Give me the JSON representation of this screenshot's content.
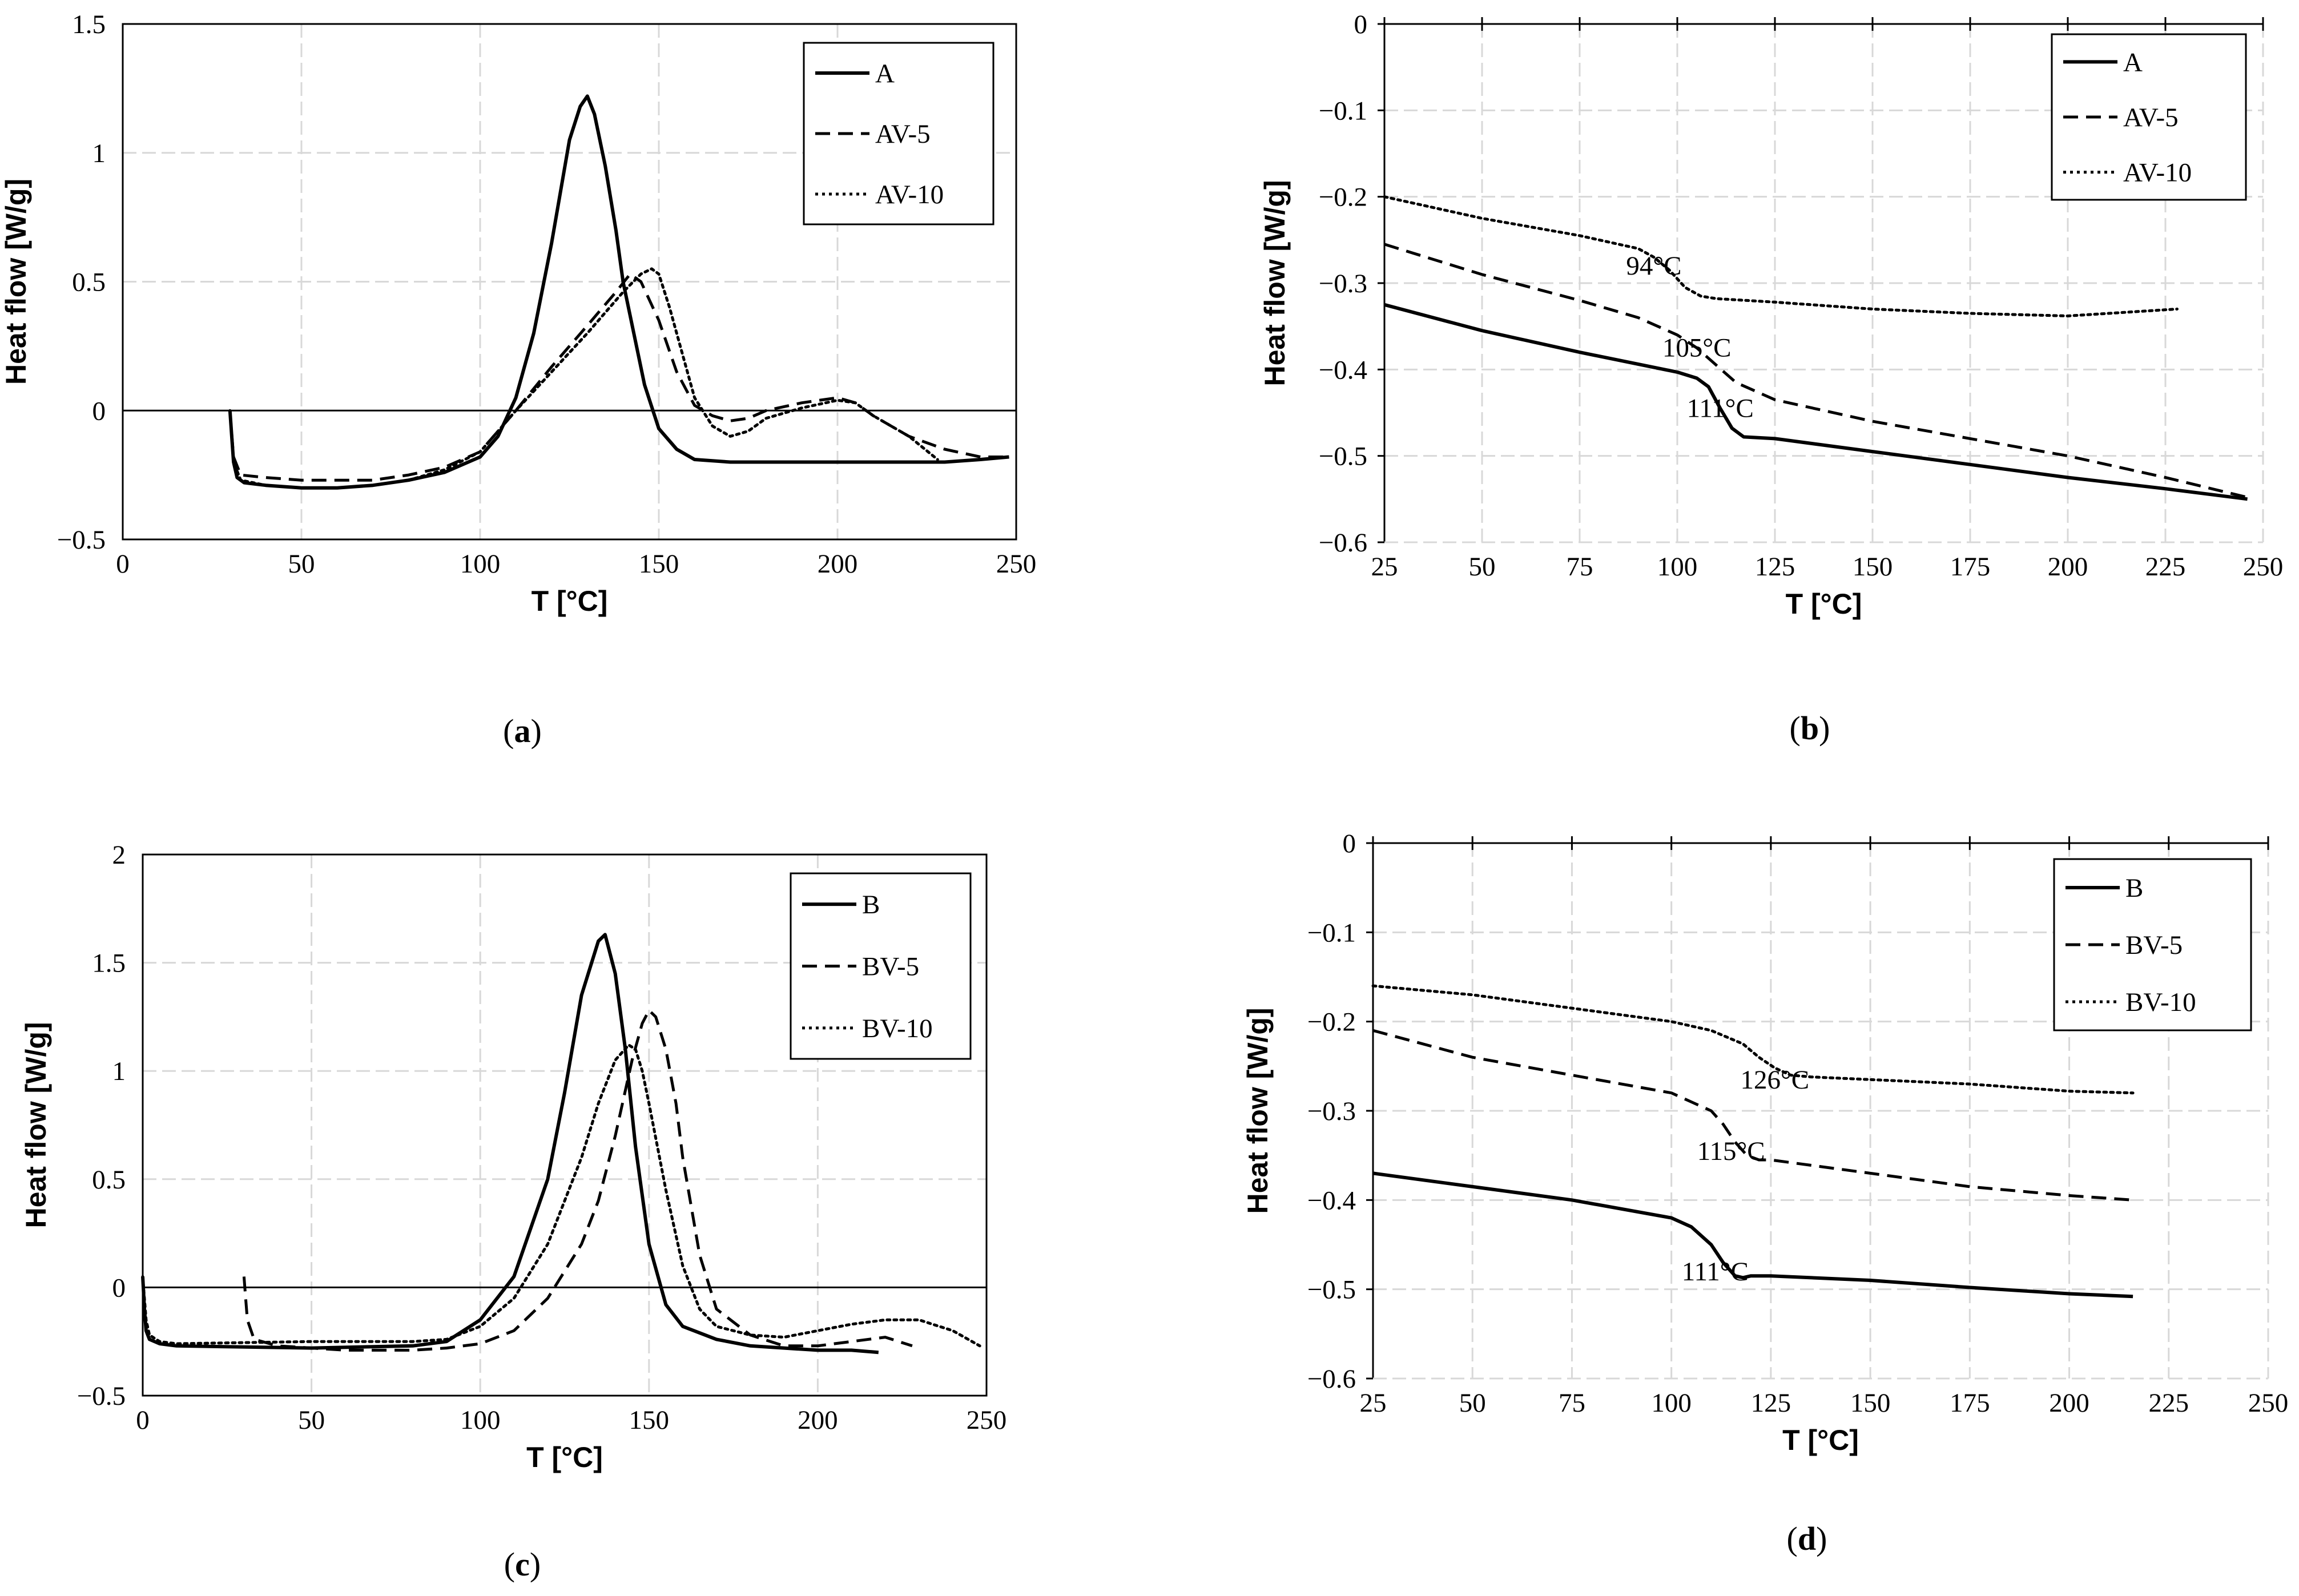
{
  "chart_data": [
    {
      "id": "a",
      "type": "line",
      "caption": "a",
      "xlabel": "T [°C]",
      "ylabel": "Heat flow [W/g]",
      "xlim": [
        0,
        250
      ],
      "ylim": [
        -0.5,
        1.5
      ],
      "xticks": [
        0,
        50,
        100,
        150,
        200,
        250
      ],
      "xtick_labels": [
        "0",
        "50",
        "100",
        "150",
        "200",
        "250"
      ],
      "yticks": [
        -0.5,
        0,
        0.5,
        1,
        1.5
      ],
      "ytick_labels": [
        "−0.5",
        "0",
        "0.5",
        "1",
        "1.5"
      ],
      "zero_line": true,
      "legend_position": "top-right",
      "series": [
        {
          "name": "A",
          "style": "solid",
          "x": [
            30,
            30.5,
            31,
            32,
            34,
            40,
            50,
            60,
            70,
            80,
            90,
            100,
            105,
            110,
            115,
            120,
            125,
            128,
            130,
            132,
            135,
            138,
            140,
            143,
            146,
            150,
            155,
            160,
            170,
            180,
            190,
            200,
            210,
            220,
            230,
            240,
            248
          ],
          "y": [
            0,
            -0.1,
            -0.2,
            -0.26,
            -0.28,
            -0.29,
            -0.3,
            -0.3,
            -0.29,
            -0.27,
            -0.24,
            -0.18,
            -0.1,
            0.05,
            0.3,
            0.65,
            1.05,
            1.18,
            1.22,
            1.15,
            0.95,
            0.7,
            0.5,
            0.3,
            0.1,
            -0.07,
            -0.15,
            -0.19,
            -0.2,
            -0.2,
            -0.2,
            -0.2,
            -0.2,
            -0.2,
            -0.2,
            -0.19,
            -0.18
          ]
        },
        {
          "name": "AV-5",
          "style": "dashed",
          "x": [
            30,
            31,
            33,
            40,
            50,
            60,
            70,
            80,
            90,
            100,
            110,
            120,
            130,
            138,
            142,
            145,
            150,
            155,
            160,
            165,
            170,
            175,
            180,
            190,
            200,
            205,
            210,
            220,
            230,
            240,
            248
          ],
          "y": [
            0,
            -0.18,
            -0.25,
            -0.26,
            -0.27,
            -0.27,
            -0.27,
            -0.25,
            -0.22,
            -0.16,
            0,
            0.17,
            0.33,
            0.46,
            0.53,
            0.5,
            0.35,
            0.15,
            0.02,
            -0.02,
            -0.04,
            -0.03,
            0,
            0.03,
            0.05,
            0.03,
            -0.02,
            -0.1,
            -0.15,
            -0.18,
            -0.18
          ]
        },
        {
          "name": "AV-10",
          "style": "dotted",
          "x": [
            30,
            31,
            33,
            40,
            50,
            60,
            70,
            80,
            90,
            100,
            110,
            120,
            130,
            140,
            145,
            148,
            150,
            153,
            157,
            160,
            165,
            170,
            175,
            180,
            190,
            200,
            205,
            210,
            220,
            228
          ],
          "y": [
            0,
            -0.2,
            -0.27,
            -0.29,
            -0.3,
            -0.3,
            -0.29,
            -0.27,
            -0.23,
            -0.16,
            0,
            0.15,
            0.3,
            0.46,
            0.53,
            0.55,
            0.53,
            0.4,
            0.2,
            0.05,
            -0.06,
            -0.1,
            -0.08,
            -0.03,
            0.01,
            0.04,
            0.03,
            -0.02,
            -0.1,
            -0.19
          ]
        }
      ]
    },
    {
      "id": "b",
      "type": "line",
      "caption": "b",
      "xlabel": "T [°C]",
      "ylabel": "Heat flow [W/g]",
      "xlim": [
        25,
        250
      ],
      "ylim": [
        -0.6,
        0
      ],
      "xticks": [
        25,
        50,
        75,
        100,
        125,
        150,
        175,
        200,
        225,
        250
      ],
      "xtick_labels": [
        "25",
        "50",
        "75",
        "100",
        "125",
        "150",
        "175",
        "200",
        "225",
        "250"
      ],
      "yticks": [
        -0.6,
        -0.5,
        -0.4,
        -0.3,
        -0.2,
        -0.1,
        0
      ],
      "ytick_labels": [
        "−0.6",
        "−0.5",
        "−0.4",
        "−0.3",
        "−0.2",
        "−0.1",
        "0"
      ],
      "zero_line": false,
      "top_axis": true,
      "legend_position": "top-right",
      "series": [
        {
          "name": "A",
          "style": "solid",
          "x": [
            25,
            50,
            75,
            100,
            105,
            108,
            111,
            114,
            117,
            125,
            150,
            175,
            200,
            225,
            246
          ],
          "y": [
            -0.325,
            -0.355,
            -0.38,
            -0.403,
            -0.41,
            -0.42,
            -0.445,
            -0.468,
            -0.478,
            -0.48,
            -0.495,
            -0.51,
            -0.525,
            -0.538,
            -0.55
          ]
        },
        {
          "name": "AV-5",
          "style": "dashed",
          "x": [
            25,
            50,
            75,
            90,
            100,
            105,
            110,
            115,
            120,
            125,
            150,
            175,
            200,
            225,
            246
          ],
          "y": [
            -0.255,
            -0.29,
            -0.32,
            -0.34,
            -0.36,
            -0.375,
            -0.395,
            -0.415,
            -0.425,
            -0.435,
            -0.46,
            -0.48,
            -0.5,
            -0.525,
            -0.548
          ]
        },
        {
          "name": "AV-10",
          "style": "dotted",
          "x": [
            25,
            50,
            75,
            90,
            94,
            98,
            102,
            106,
            110,
            125,
            150,
            175,
            200,
            228
          ],
          "y": [
            -0.2,
            -0.225,
            -0.245,
            -0.26,
            -0.27,
            -0.285,
            -0.305,
            -0.315,
            -0.318,
            -0.322,
            -0.33,
            -0.335,
            -0.338,
            -0.33
          ]
        }
      ],
      "annotations": [
        {
          "text": "94°C",
          "x": 94,
          "y": -0.29
        },
        {
          "text": "105°C",
          "x": 105,
          "y": -0.385
        },
        {
          "text": "111°C",
          "x": 111,
          "y": -0.455
        }
      ]
    },
    {
      "id": "c",
      "type": "line",
      "caption": "c",
      "xlabel": "T [°C]",
      "ylabel": "Heat flow [W/g]",
      "xlim": [
        0,
        250
      ],
      "ylim": [
        -0.5,
        2
      ],
      "xticks": [
        0,
        50,
        100,
        150,
        200,
        250
      ],
      "xtick_labels": [
        "0",
        "50",
        "100",
        "150",
        "200",
        "250"
      ],
      "yticks": [
        -0.5,
        0,
        0.5,
        1,
        1.5,
        2
      ],
      "ytick_labels": [
        "−0.5",
        "0",
        "0.5",
        "1",
        "1.5",
        "2"
      ],
      "zero_line": true,
      "legend_position": "top-right",
      "series": [
        {
          "name": "B",
          "style": "solid",
          "x": [
            0,
            0.5,
            1,
            2,
            5,
            10,
            50,
            80,
            90,
            100,
            110,
            120,
            125,
            130,
            135,
            137,
            140,
            143,
            146,
            150,
            155,
            160,
            170,
            180,
            190,
            200,
            210,
            218
          ],
          "y": [
            0.05,
            -0.1,
            -0.2,
            -0.24,
            -0.26,
            -0.27,
            -0.28,
            -0.27,
            -0.25,
            -0.15,
            0.05,
            0.5,
            0.9,
            1.35,
            1.6,
            1.63,
            1.45,
            1.1,
            0.65,
            0.2,
            -0.08,
            -0.18,
            -0.24,
            -0.27,
            -0.28,
            -0.29,
            -0.29,
            -0.3
          ]
        },
        {
          "name": "BV-5",
          "style": "dashed",
          "x": [
            30,
            30.5,
            31,
            33,
            40,
            50,
            60,
            70,
            80,
            90,
            100,
            110,
            120,
            130,
            135,
            140,
            145,
            148,
            150,
            152,
            155,
            158,
            160,
            165,
            170,
            180,
            190,
            200,
            210,
            220,
            228
          ],
          "y": [
            0.05,
            -0.05,
            -0.15,
            -0.24,
            -0.27,
            -0.28,
            -0.29,
            -0.29,
            -0.29,
            -0.28,
            -0.26,
            -0.2,
            -0.05,
            0.2,
            0.4,
            0.7,
            1.05,
            1.22,
            1.28,
            1.25,
            1.1,
            0.85,
            0.6,
            0.15,
            -0.1,
            -0.22,
            -0.27,
            -0.27,
            -0.25,
            -0.23,
            -0.27
          ]
        },
        {
          "name": "BV-10",
          "style": "dotted",
          "x": [
            0,
            1,
            2,
            5,
            10,
            50,
            80,
            90,
            100,
            110,
            120,
            130,
            135,
            140,
            144,
            146,
            148,
            150,
            155,
            160,
            165,
            170,
            180,
            190,
            200,
            210,
            220,
            230,
            240,
            248
          ],
          "y": [
            0.05,
            -0.15,
            -0.22,
            -0.25,
            -0.26,
            -0.25,
            -0.25,
            -0.24,
            -0.18,
            -0.05,
            0.2,
            0.6,
            0.85,
            1.05,
            1.12,
            1.1,
            1.0,
            0.85,
            0.45,
            0.1,
            -0.1,
            -0.18,
            -0.22,
            -0.23,
            -0.2,
            -0.17,
            -0.15,
            -0.15,
            -0.2,
            -0.27
          ]
        }
      ]
    },
    {
      "id": "d",
      "type": "line",
      "caption": "d",
      "xlabel": "T [°C]",
      "ylabel": "Heat flow [W/g]",
      "xlim": [
        25,
        250
      ],
      "ylim": [
        -0.6,
        0
      ],
      "xticks": [
        25,
        50,
        75,
        100,
        125,
        150,
        175,
        200,
        225,
        250
      ],
      "xtick_labels": [
        "25",
        "50",
        "75",
        "100",
        "125",
        "150",
        "175",
        "200",
        "225",
        "250"
      ],
      "yticks": [
        -0.6,
        -0.5,
        -0.4,
        -0.3,
        -0.2,
        -0.1,
        0
      ],
      "ytick_labels": [
        "−0.6",
        "−0.5",
        "−0.4",
        "−0.3",
        "−0.2",
        "−0.1",
        "0"
      ],
      "zero_line": false,
      "top_axis": true,
      "legend_position": "top-right",
      "series": [
        {
          "name": "B",
          "style": "solid",
          "x": [
            25,
            50,
            75,
            100,
            105,
            110,
            113,
            116,
            118,
            120,
            125,
            150,
            175,
            200,
            216
          ],
          "y": [
            -0.37,
            -0.385,
            -0.4,
            -0.42,
            -0.43,
            -0.45,
            -0.47,
            -0.485,
            -0.487,
            -0.485,
            -0.485,
            -0.49,
            -0.498,
            -0.505,
            -0.508
          ]
        },
        {
          "name": "BV-5",
          "style": "dashed",
          "x": [
            25,
            50,
            75,
            100,
            105,
            110,
            113,
            116,
            119,
            122,
            125,
            150,
            175,
            200,
            216
          ],
          "y": [
            -0.21,
            -0.24,
            -0.26,
            -0.28,
            -0.29,
            -0.3,
            -0.315,
            -0.335,
            -0.35,
            -0.355,
            -0.355,
            -0.37,
            -0.385,
            -0.395,
            -0.4
          ]
        },
        {
          "name": "BV-10",
          "style": "dotted",
          "x": [
            25,
            50,
            75,
            100,
            110,
            118,
            122,
            126,
            130,
            135,
            150,
            175,
            200,
            216
          ],
          "y": [
            -0.16,
            -0.17,
            -0.185,
            -0.2,
            -0.21,
            -0.225,
            -0.24,
            -0.252,
            -0.26,
            -0.262,
            -0.265,
            -0.27,
            -0.278,
            -0.28
          ]
        }
      ],
      "annotations": [
        {
          "text": "126°C",
          "x": 126,
          "y": -0.275
        },
        {
          "text": "115°C",
          "x": 115,
          "y": -0.355
        },
        {
          "text": "111°C",
          "x": 111,
          "y": -0.49
        }
      ]
    }
  ]
}
